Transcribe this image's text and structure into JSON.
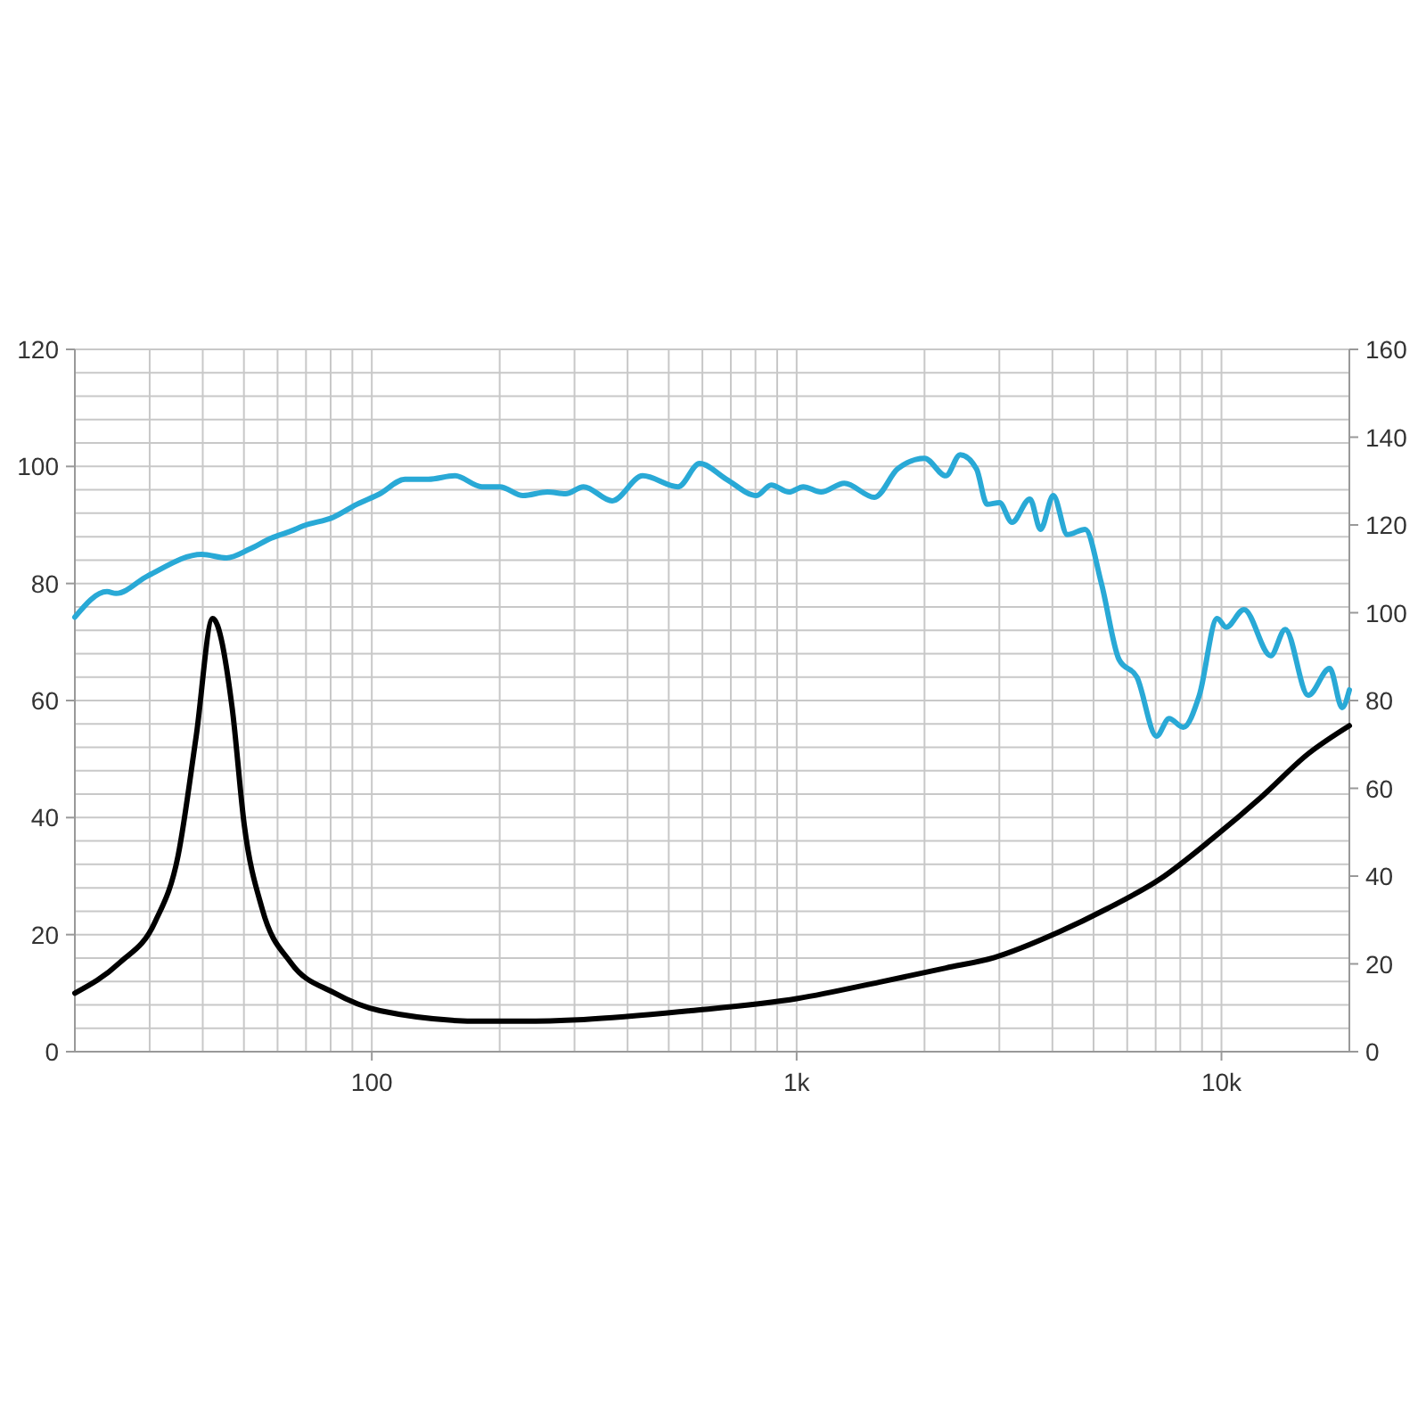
{
  "chart_data": {
    "type": "line",
    "log": "x",
    "grid": true,
    "line_style": "solid",
    "marker": "none",
    "xlim": [
      20,
      20000
    ],
    "xticks": [
      {
        "value": 20,
        "label": null
      },
      {
        "value": 30,
        "label": null
      },
      {
        "value": 40,
        "label": null
      },
      {
        "value": 50,
        "label": null
      },
      {
        "value": 60,
        "label": null
      },
      {
        "value": 70,
        "label": null
      },
      {
        "value": 80,
        "label": null
      },
      {
        "value": 90,
        "label": null
      },
      100,
      {
        "value": 200,
        "label": null
      },
      {
        "value": 300,
        "label": null
      },
      {
        "value": 400,
        "label": null
      },
      {
        "value": 500,
        "label": null
      },
      {
        "value": 600,
        "label": null
      },
      {
        "value": 700,
        "label": null
      },
      {
        "value": 800,
        "label": null
      },
      {
        "value": 900,
        "label": null
      },
      {
        "value": 1000,
        "label": "1k"
      },
      {
        "value": 2000,
        "label": null
      },
      {
        "value": 3000,
        "label": null
      },
      {
        "value": 4000,
        "label": null
      },
      {
        "value": 5000,
        "label": null
      },
      {
        "value": 6000,
        "label": null
      },
      {
        "value": 7000,
        "label": null
      },
      {
        "value": 8000,
        "label": null
      },
      {
        "value": 9000,
        "label": null
      },
      {
        "value": 10000,
        "label": "10k"
      },
      {
        "value": 20000,
        "label": null
      }
    ],
    "ylim": [
      0,
      120
    ],
    "yticks": [
      0,
      {
        "value": 4,
        "label": null
      },
      {
        "value": 8,
        "label": null
      },
      {
        "value": 12,
        "label": null
      },
      {
        "value": 16,
        "label": null
      },
      20,
      {
        "value": 24,
        "label": null
      },
      {
        "value": 28,
        "label": null
      },
      {
        "value": 32,
        "label": null
      },
      {
        "value": 36,
        "label": null
      },
      40,
      {
        "value": 44,
        "label": null
      },
      {
        "value": 48,
        "label": null
      },
      {
        "value": 52,
        "label": null
      },
      {
        "value": 56,
        "label": null
      },
      60,
      {
        "value": 64,
        "label": null
      },
      {
        "value": 68,
        "label": null
      },
      {
        "value": 72,
        "label": null
      },
      {
        "value": 76,
        "label": null
      },
      80,
      {
        "value": 84,
        "label": null
      },
      {
        "value": 88,
        "label": null
      },
      {
        "value": 92,
        "label": null
      },
      {
        "value": 96,
        "label": null
      },
      100,
      {
        "value": 104,
        "label": null
      },
      {
        "value": 108,
        "label": null
      },
      {
        "value": 112,
        "label": null
      },
      {
        "value": 116,
        "label": null
      },
      120
    ],
    "y2lim": [
      0,
      160
    ],
    "y2ticks": [
      0,
      20,
      40,
      60,
      80,
      100,
      120,
      140,
      160
    ],
    "series": [
      {
        "color": "#29a9d6",
        "axis": "y2",
        "x": [
          20,
          23.8,
          25,
          29.7,
          39.8,
          45.5,
          51.6,
          58,
          64.5,
          69,
          81.3,
          92.2,
          104.5,
          119.7,
          135.9,
          157,
          181.6,
          200,
          227,
          259,
          286,
          315,
          368,
          434,
          526,
          591,
          684,
          805,
          871,
          960,
          1036,
          1141,
          1295,
          1525,
          1730,
          2000,
          2245,
          2427,
          2650,
          2808,
          3003,
          3213,
          3541,
          3751,
          4018,
          4338,
          4778,
          5213,
          5742,
          6325,
          7032,
          7532,
          8130,
          8870,
          9772,
          10260,
          11300,
          13060,
          14130,
          16000,
          17980,
          19230,
          20000
        ],
        "values": [
          99,
          104.8,
          104.4,
          108.4,
          113.3,
          112.5,
          114.5,
          117,
          118.6,
          119.8,
          121.8,
          124.7,
          127.1,
          130.4,
          130.4,
          131.2,
          128.7,
          128.7,
          126.7,
          127.5,
          127.1,
          128.7,
          125.5,
          131.2,
          128.7,
          134,
          130.4,
          126.7,
          129.1,
          127.5,
          128.7,
          127.5,
          129.5,
          126.3,
          132.8,
          135.2,
          131.2,
          136,
          132.8,
          124.7,
          125.1,
          120.6,
          125.9,
          119,
          126.7,
          117.8,
          119,
          106.8,
          89.3,
          85.3,
          71.9,
          75.9,
          73.9,
          81.2,
          98.7,
          96.7,
          100.7,
          90.2,
          96.2,
          81.2,
          87.3,
          78.4,
          82.4
        ]
      },
      {
        "color": "#000000",
        "x": [
          20,
          25.5,
          30.9,
          35,
          38.6,
          42.2,
          46.9,
          50.1,
          55.2,
          64.5,
          81.3,
          104.5,
          181.6,
          227,
          315,
          563,
          1007,
          1571,
          2245,
          2920,
          4130,
          5370,
          7170,
          9590,
          12450,
          16000,
          20000
        ],
        "values": [
          10,
          15.2,
          22.2,
          33.5,
          53.9,
          74,
          58.8,
          38.7,
          24.4,
          15.2,
          10.1,
          7,
          5.2,
          5.2,
          5.5,
          7,
          9.1,
          11.9,
          14.3,
          16.1,
          20.4,
          24.4,
          29.5,
          36.6,
          43.6,
          50.9,
          55.7
        ]
      }
    ]
  }
}
